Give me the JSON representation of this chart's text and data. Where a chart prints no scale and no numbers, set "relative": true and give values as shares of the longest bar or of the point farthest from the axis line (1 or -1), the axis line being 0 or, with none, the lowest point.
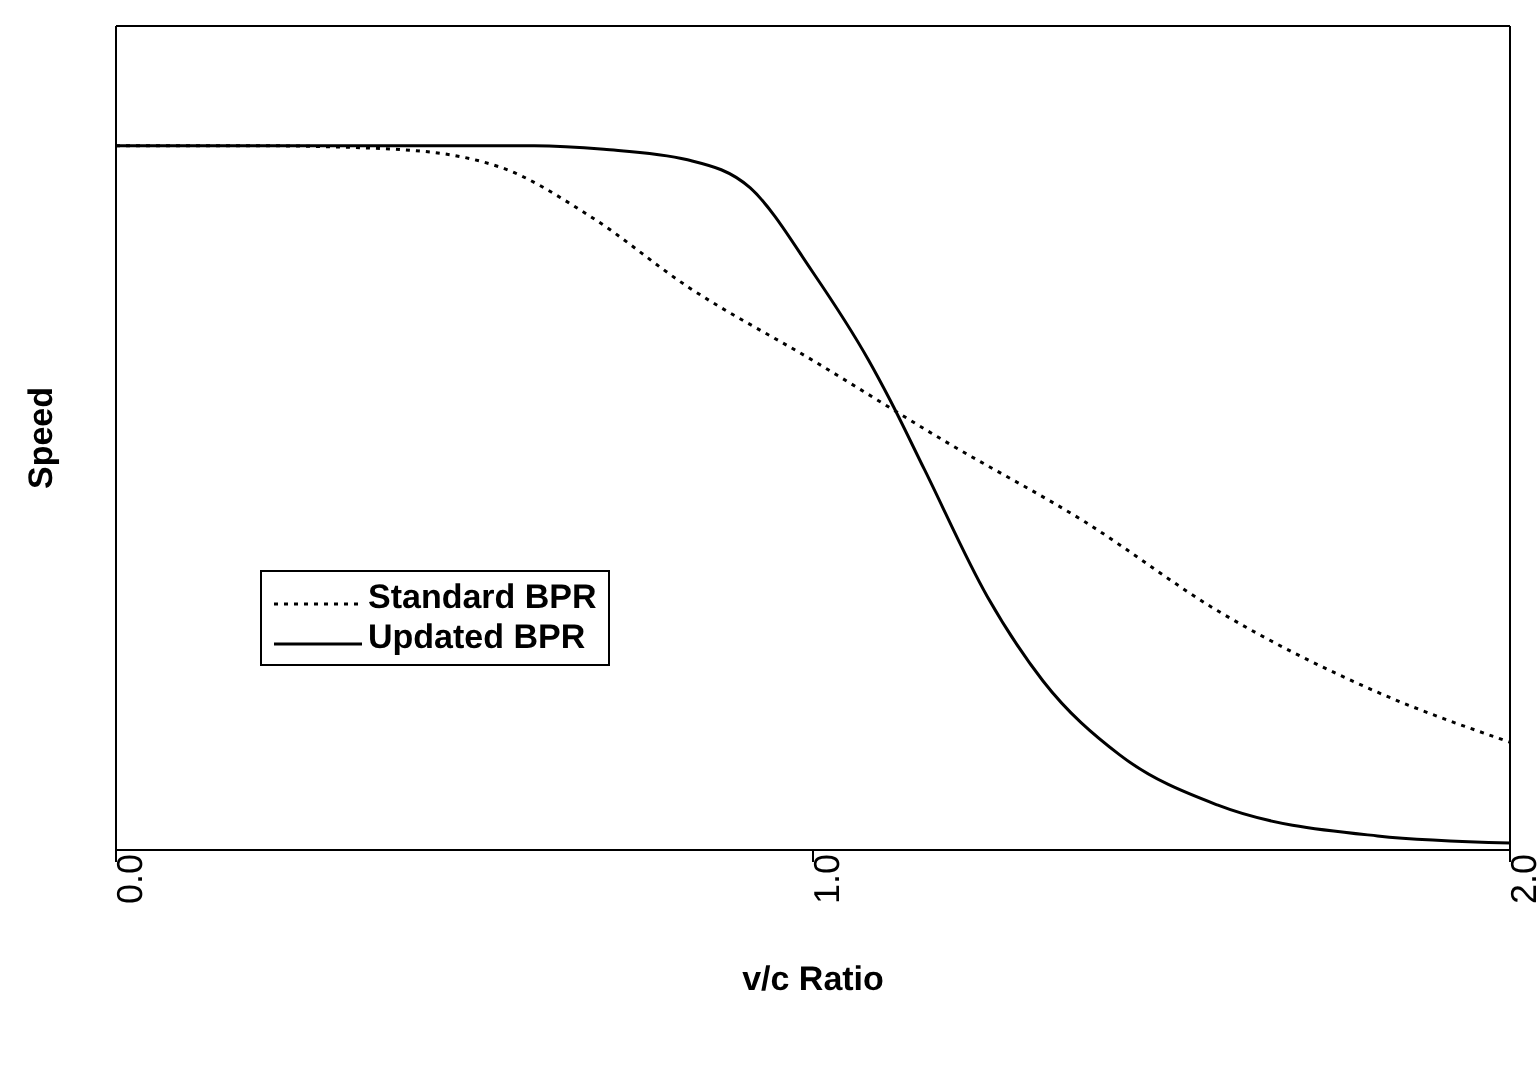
{
  "chart_data": {
    "type": "line",
    "relative": true,
    "xlabel": "v/c Ratio",
    "ylabel": "Speed",
    "xlim": [
      0,
      2
    ],
    "xticks": [
      {
        "value": 0,
        "label": "0.0"
      },
      {
        "value": 1,
        "label": "1.0"
      },
      {
        "value": 2,
        "label": "2.0"
      }
    ],
    "legend": "left",
    "marker": "none",
    "series": [
      {
        "name": "Standard BPR",
        "color": "#000000",
        "line_style": "dotted",
        "x": [
          0,
          0.2,
          0.4,
          0.55,
          0.68,
          0.82,
          1.0,
          1.19,
          1.39,
          1.58,
          1.81,
          2.0
        ],
        "values": [
          1,
          1,
          0.995,
          0.97,
          0.9,
          0.8,
          0.695,
          0.58,
          0.466,
          0.34,
          0.224,
          0.153
        ]
      },
      {
        "name": "Updated BPR",
        "color": "#000000",
        "line_style": "solid",
        "x": [
          0,
          0.4,
          0.6,
          0.7,
          0.82,
          0.91,
          1.0,
          1.08,
          1.11,
          1.16,
          1.25,
          1.33,
          1.44,
          1.58,
          1.81,
          2.0
        ],
        "values": [
          1,
          1,
          1,
          0.995,
          0.98,
          0.94,
          0.82,
          0.695,
          0.64,
          0.54,
          0.36,
          0.24,
          0.135,
          0.064,
          0.02,
          0.01
        ]
      }
    ]
  }
}
